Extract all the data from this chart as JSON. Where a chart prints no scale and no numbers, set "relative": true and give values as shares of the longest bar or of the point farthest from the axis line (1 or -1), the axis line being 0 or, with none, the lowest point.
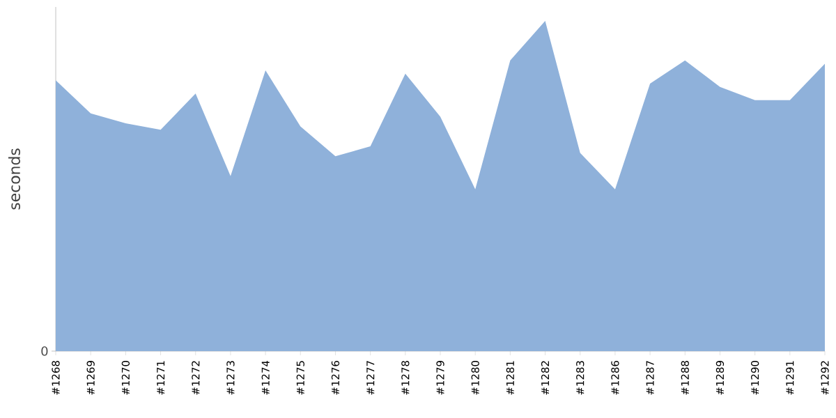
{
  "chart_data": {
    "type": "area",
    "ylabel": "seconds",
    "relative": true,
    "annotations": [
      "0"
    ],
    "color": "#8fb1da",
    "categories": [
      "#1268",
      "#1269",
      "#1270",
      "#1271",
      "#1272",
      "#1273",
      "#1274",
      "#1275",
      "#1276",
      "#1277",
      "#1278",
      "#1279",
      "#1280",
      "#1281",
      "#1282",
      "#1283",
      "#1286",
      "#1287",
      "#1288",
      "#1289",
      "#1290",
      "#1291",
      "#1292"
    ],
    "values": [
      0.82,
      0.72,
      0.69,
      0.67,
      0.78,
      0.53,
      0.85,
      0.68,
      0.59,
      0.62,
      0.84,
      0.71,
      0.49,
      0.88,
      1,
      0.6,
      0.49,
      0.81,
      0.88,
      0.8,
      0.76,
      0.76,
      0.87
    ]
  }
}
